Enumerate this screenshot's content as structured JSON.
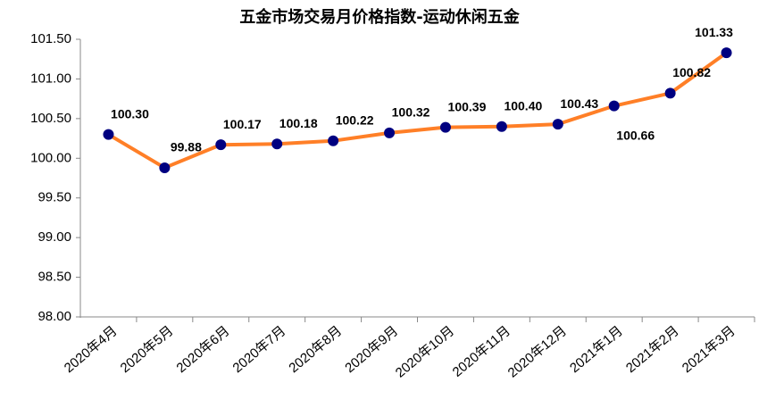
{
  "chart_data": {
    "type": "line",
    "title": "五金市场交易月价格指数-运动休闲五金",
    "categories": [
      "2020年4月",
      "2020年5月",
      "2020年6月",
      "2020年7月",
      "2020年8月",
      "2020年9月",
      "2020年10月",
      "2020年11月",
      "2020年12月",
      "2021年1月",
      "2021年2月",
      "2021年3月"
    ],
    "series": [
      {
        "color": "#ff7f27",
        "marker_color": "#000080",
        "values": [
          100.3,
          99.88,
          100.17,
          100.18,
          100.22,
          100.32,
          100.39,
          100.4,
          100.43,
          100.66,
          100.82,
          101.33
        ],
        "value_labels": [
          "100.30",
          "99.88",
          "100.17",
          "100.18",
          "100.22",
          "100.32",
          "100.39",
          "100.40",
          "100.43",
          "100.66",
          "100.82",
          "101.33"
        ]
      }
    ],
    "ylim": [
      98,
      101.5
    ],
    "yticks": [
      {
        "value": 98,
        "label": "98.00"
      },
      {
        "value": 98.5,
        "label": "98.50"
      },
      {
        "value": 99,
        "label": "99.00"
      },
      {
        "value": 99.5,
        "label": "99.50"
      },
      {
        "value": 100,
        "label": "100.00"
      },
      {
        "value": 100.5,
        "label": "100.50"
      },
      {
        "value": 101,
        "label": "101.00"
      },
      {
        "value": 101.5,
        "label": "101.50"
      }
    ],
    "grid": false
  }
}
